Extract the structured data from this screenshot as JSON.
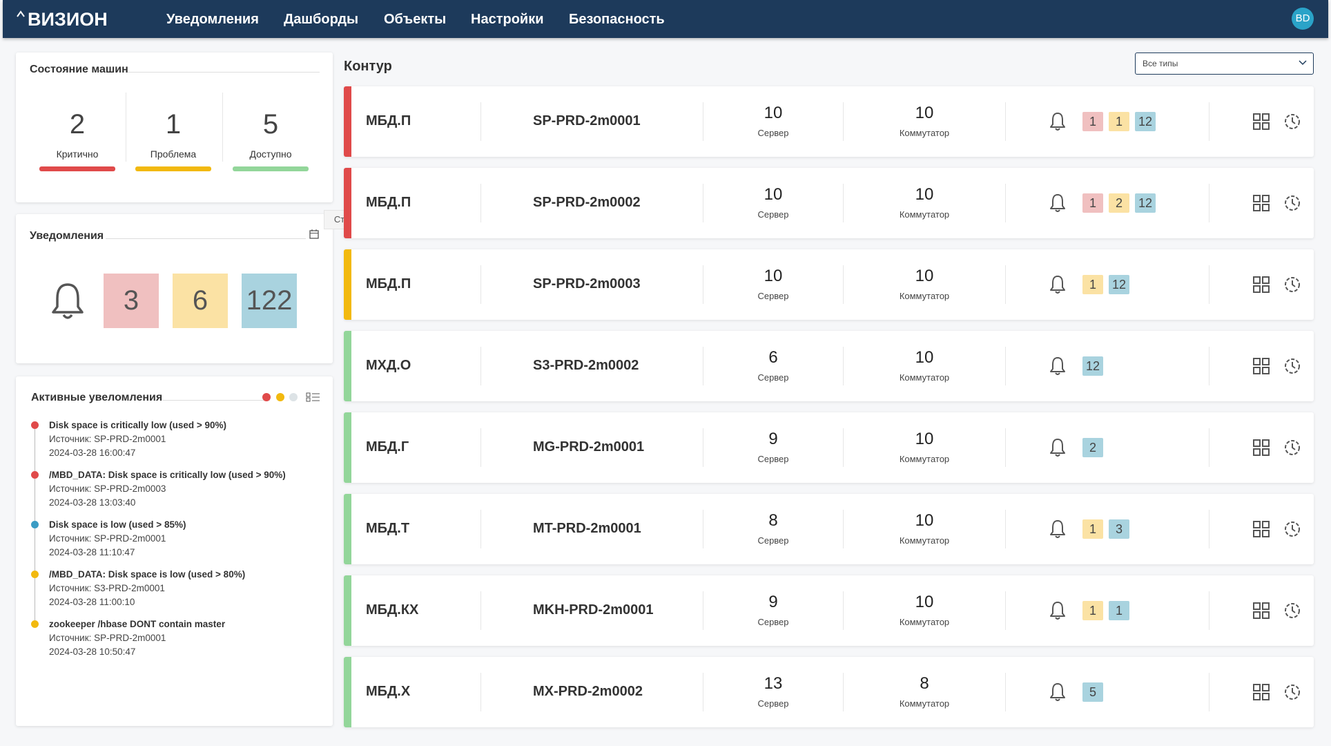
{
  "header": {
    "logo": "ВИЗИОН",
    "nav": [
      "Уведомления",
      "Дашборды",
      "Объекты",
      "Настройки",
      "Безопасность"
    ],
    "avatar": "BD"
  },
  "machine_status": {
    "title": "Состояние машин",
    "stats": [
      {
        "value": 2,
        "label": "Критично",
        "color": "#e04a4a"
      },
      {
        "value": 1,
        "label": "Проблема",
        "color": "#f2b90f"
      },
      {
        "value": 5,
        "label": "Доступно",
        "color": "#93d69a"
      }
    ]
  },
  "notifications": {
    "title": "Уведомления",
    "tooltip": "Статистика уведомлений",
    "counts": [
      {
        "value": 3,
        "color": "#f0c0c0"
      },
      {
        "value": 6,
        "color": "#fbe2a4"
      },
      {
        "value": 122,
        "color": "#a9d3df"
      }
    ]
  },
  "active_notifications": {
    "title": "Активные увеломления",
    "items": [
      {
        "message": "Disk space is critically low (used > 90%)",
        "source": "Источник: SP-PRD-2m0001",
        "time": "2024-03-28 16:00:47",
        "color": "#e04a4a"
      },
      {
        "message": "/MBD_DATA: Disk space is critically low (used > 90%)",
        "source": "Источник: SP-PRD-2m0003",
        "time": "2024-03-28 13:03:40",
        "color": "#e04a4a"
      },
      {
        "message": "Disk space is low (used > 85%)",
        "source": "Источник: SP-PRD-2m0001",
        "time": "2024-03-28 11:10:47",
        "color": "#3a9cc4"
      },
      {
        "message": "/MBD_DATA: Disk space is low (used > 80%)",
        "source": "Источник: S3-PRD-2m0001",
        "time": "2024-03-28 11:00:10",
        "color": "#f2b90f"
      },
      {
        "message": "zookeeper /hbase DONT contain master",
        "source": "Источник: SP-PRD-2m0001",
        "time": "2024-03-28 10:50:47",
        "color": "#f2b90f"
      }
    ]
  },
  "contour": {
    "title": "Контур",
    "filter": "Все типы",
    "rows": [
      {
        "group": "МБД.П",
        "host": "SP-PRD-2m0001",
        "servers": 10,
        "server_label": "Сервер",
        "switches": 10,
        "switch_label": "Коммутатор",
        "status_color": "#e04a4a",
        "badges": [
          {
            "value": 1,
            "color": "#f0c0c0"
          },
          {
            "value": 1,
            "color": "#fbe2a4"
          },
          {
            "value": 12,
            "color": "#a9d3df"
          }
        ]
      },
      {
        "group": "МБД.П",
        "host": "SP-PRD-2m0002",
        "servers": 10,
        "server_label": "Сервер",
        "switches": 10,
        "switch_label": "Коммутатор",
        "status_color": "#e04a4a",
        "badges": [
          {
            "value": 1,
            "color": "#f0c0c0"
          },
          {
            "value": 2,
            "color": "#fbe2a4"
          },
          {
            "value": 12,
            "color": "#a9d3df"
          }
        ]
      },
      {
        "group": "МБД.П",
        "host": "SP-PRD-2m0003",
        "servers": 10,
        "server_label": "Сервер",
        "switches": 10,
        "switch_label": "Коммутатор",
        "status_color": "#f2b90f",
        "badges": [
          {
            "value": 1,
            "color": "#fbe2a4"
          },
          {
            "value": 12,
            "color": "#a9d3df"
          }
        ]
      },
      {
        "group": "МХД.О",
        "host": "S3-PRD-2m0002",
        "servers": 6,
        "server_label": "Сервер",
        "switches": 10,
        "switch_label": "Коммутатор",
        "status_color": "#93d69a",
        "badges": [
          {
            "value": 12,
            "color": "#a9d3df"
          }
        ]
      },
      {
        "group": "МБД.Г",
        "host": "MG-PRD-2m0001",
        "servers": 9,
        "server_label": "Сервер",
        "switches": 10,
        "switch_label": "Коммутатор",
        "status_color": "#93d69a",
        "badges": [
          {
            "value": 2,
            "color": "#a9d3df"
          }
        ]
      },
      {
        "group": "МБД.Т",
        "host": "MT-PRD-2m0001",
        "servers": 8,
        "server_label": "Сервер",
        "switches": 10,
        "switch_label": "Коммутатор",
        "status_color": "#93d69a",
        "badges": [
          {
            "value": 1,
            "color": "#fbe2a4"
          },
          {
            "value": 3,
            "color": "#a9d3df"
          }
        ]
      },
      {
        "group": "МБД.КХ",
        "host": "MKH-PRD-2m0001",
        "servers": 9,
        "server_label": "Сервер",
        "switches": 10,
        "switch_label": "Коммутатор",
        "status_color": "#93d69a",
        "badges": [
          {
            "value": 1,
            "color": "#fbe2a4"
          },
          {
            "value": 1,
            "color": "#a9d3df"
          }
        ]
      },
      {
        "group": "МБД.Х",
        "host": "MX-PRD-2m0002",
        "servers": 13,
        "server_label": "Сервер",
        "switches": 8,
        "switch_label": "Коммутатор",
        "status_color": "#93d69a",
        "badges": [
          {
            "value": 5,
            "color": "#a9d3df"
          }
        ]
      }
    ]
  }
}
